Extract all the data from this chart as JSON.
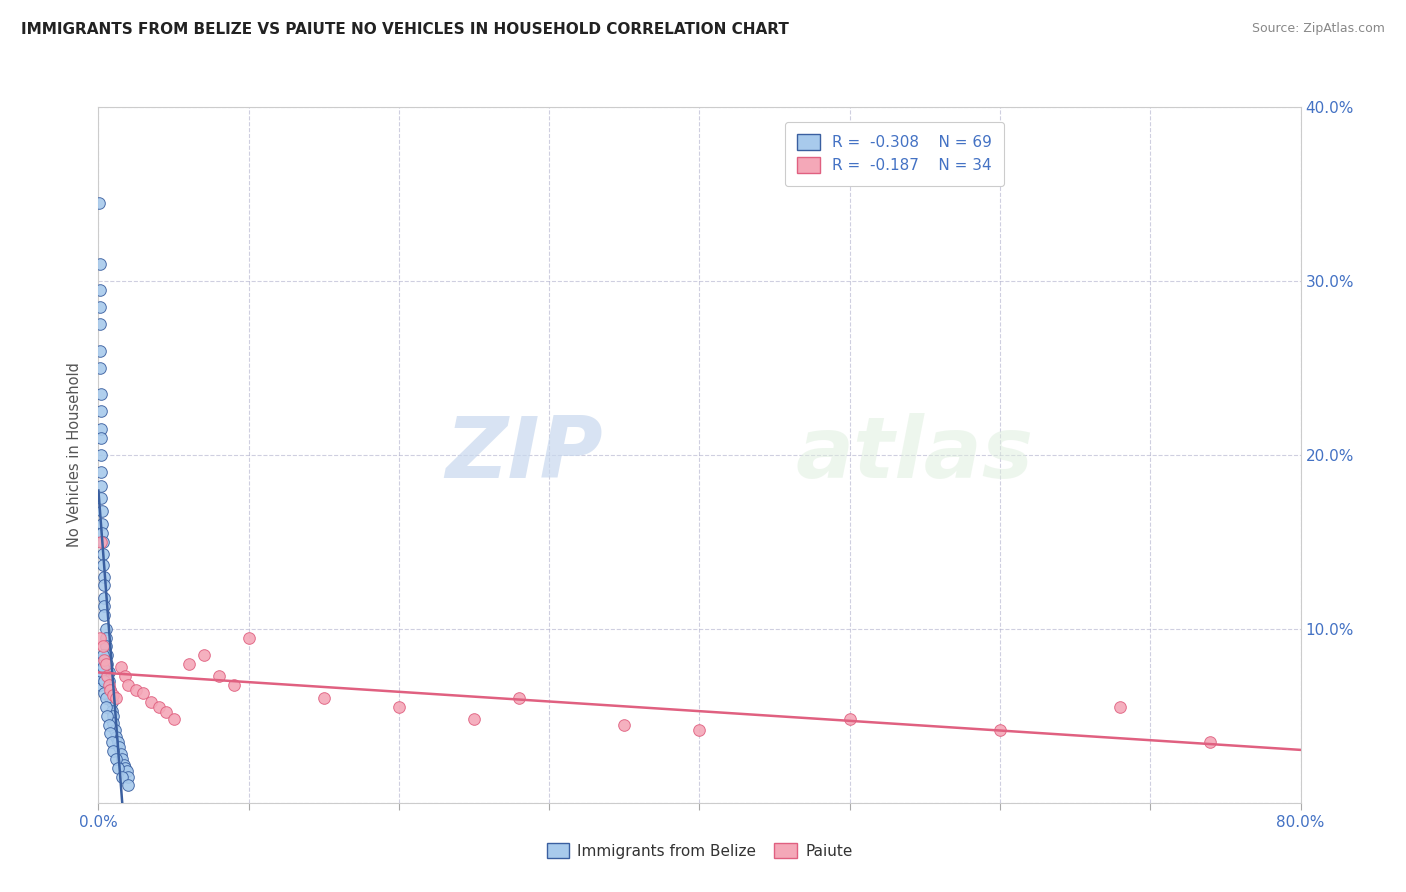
{
  "title": "IMMIGRANTS FROM BELIZE VS PAIUTE NO VEHICLES IN HOUSEHOLD CORRELATION CHART",
  "source_text": "Source: ZipAtlas.com",
  "ylabel_text": "No Vehicles in Household",
  "xlim": [
    0.0,
    0.8
  ],
  "ylim": [
    0.0,
    0.4
  ],
  "xtick_values": [
    0.0,
    0.1,
    0.2,
    0.3,
    0.4,
    0.5,
    0.6,
    0.7,
    0.8
  ],
  "ytick_values": [
    0.0,
    0.1,
    0.2,
    0.3,
    0.4
  ],
  "color_blue": "#A8CAEC",
  "color_pink": "#F4A8B8",
  "line_blue": "#3A5FA0",
  "line_pink": "#E06080",
  "legend_r1": "R =  -0.308",
  "legend_n1": "N = 69",
  "legend_r2": "R =  -0.187",
  "legend_n2": "N = 34",
  "watermark_zip": "ZIP",
  "watermark_atlas": "atlas",
  "legend_label1": "Immigrants from Belize",
  "legend_label2": "Paiute",
  "blue_x": [
    0.0005,
    0.0008,
    0.001,
    0.001,
    0.001,
    0.001,
    0.001,
    0.0015,
    0.0015,
    0.0015,
    0.002,
    0.002,
    0.002,
    0.002,
    0.002,
    0.0025,
    0.0025,
    0.0025,
    0.003,
    0.003,
    0.003,
    0.0035,
    0.0035,
    0.004,
    0.004,
    0.004,
    0.005,
    0.005,
    0.005,
    0.006,
    0.006,
    0.007,
    0.007,
    0.008,
    0.008,
    0.009,
    0.009,
    0.01,
    0.01,
    0.011,
    0.012,
    0.013,
    0.014,
    0.015,
    0.016,
    0.017,
    0.018,
    0.019,
    0.02,
    0.001,
    0.001,
    0.0015,
    0.002,
    0.002,
    0.003,
    0.003,
    0.004,
    0.004,
    0.005,
    0.005,
    0.006,
    0.007,
    0.008,
    0.009,
    0.01,
    0.012,
    0.013,
    0.016,
    0.02
  ],
  "blue_y": [
    0.345,
    0.285,
    0.31,
    0.295,
    0.275,
    0.26,
    0.25,
    0.235,
    0.225,
    0.215,
    0.21,
    0.2,
    0.19,
    0.182,
    0.175,
    0.168,
    0.16,
    0.155,
    0.15,
    0.143,
    0.137,
    0.13,
    0.125,
    0.118,
    0.113,
    0.108,
    0.1,
    0.095,
    0.09,
    0.085,
    0.08,
    0.075,
    0.07,
    0.065,
    0.06,
    0.058,
    0.053,
    0.05,
    0.046,
    0.042,
    0.038,
    0.035,
    0.032,
    0.028,
    0.025,
    0.022,
    0.02,
    0.018,
    0.015,
    0.075,
    0.068,
    0.072,
    0.082,
    0.076,
    0.085,
    0.078,
    0.07,
    0.063,
    0.06,
    0.055,
    0.05,
    0.045,
    0.04,
    0.035,
    0.03,
    0.025,
    0.02,
    0.015,
    0.01
  ],
  "pink_x": [
    0.001,
    0.002,
    0.003,
    0.004,
    0.005,
    0.006,
    0.007,
    0.008,
    0.01,
    0.012,
    0.015,
    0.018,
    0.02,
    0.025,
    0.03,
    0.035,
    0.04,
    0.045,
    0.05,
    0.06,
    0.07,
    0.08,
    0.09,
    0.1,
    0.15,
    0.2,
    0.25,
    0.28,
    0.35,
    0.4,
    0.5,
    0.6,
    0.68,
    0.74
  ],
  "pink_y": [
    0.095,
    0.15,
    0.09,
    0.082,
    0.08,
    0.073,
    0.068,
    0.065,
    0.062,
    0.06,
    0.078,
    0.073,
    0.068,
    0.065,
    0.063,
    0.058,
    0.055,
    0.052,
    0.048,
    0.08,
    0.085,
    0.073,
    0.068,
    0.095,
    0.06,
    0.055,
    0.048,
    0.06,
    0.045,
    0.042,
    0.048,
    0.042,
    0.055,
    0.035
  ]
}
